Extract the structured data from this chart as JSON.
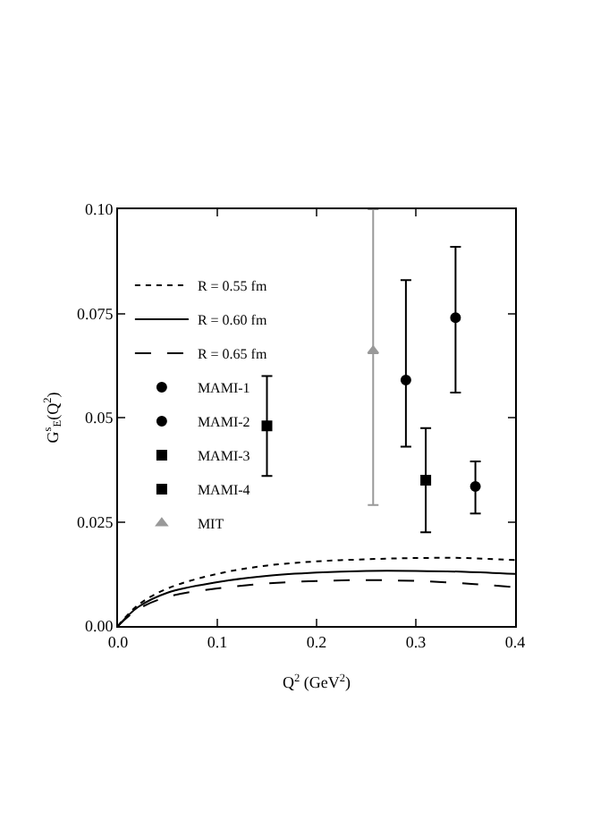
{
  "chart_data": {
    "type": "line",
    "xlabel": "Q$^{2}$ (GeV$^{2}$)",
    "ylabel": "G$^{s}$$_{E}$(Q$^{2}$)",
    "xlim": [
      0,
      0.4
    ],
    "xticks": [
      {
        "value": 0,
        "label": "0.0"
      },
      0.1,
      0.2,
      0.3,
      0.4
    ],
    "ylim": [
      0,
      0.1
    ],
    "yticks": [
      {
        "value": 0,
        "label": "0.00"
      },
      0.025,
      {
        "value": 0.05,
        "label": "0.05"
      },
      0.075,
      {
        "value": 0.1,
        "label": "0.10"
      }
    ],
    "legend": "top left",
    "series": [
      {
        "name": "R = 0.55 fm",
        "line_style": "dotted",
        "color": "#000000",
        "x": [
          0,
          0.02,
          0.05,
          0.1,
          0.15,
          0.2,
          0.25,
          0.3,
          0.35,
          0.4
        ],
        "values": [
          0,
          0.005,
          0.009,
          0.0125,
          0.0145,
          0.0155,
          0.016,
          0.0163,
          0.0163,
          0.0158
        ]
      },
      {
        "name": "R = 0.60 fm",
        "line_style": "solid",
        "color": "#000000",
        "x": [
          0,
          0.02,
          0.05,
          0.1,
          0.15,
          0.2,
          0.25,
          0.3,
          0.35,
          0.4
        ],
        "values": [
          0,
          0.0045,
          0.008,
          0.0105,
          0.012,
          0.0128,
          0.0132,
          0.0132,
          0.013,
          0.0125
        ]
      },
      {
        "name": "R = 0.65 fm",
        "line_style": "dashed",
        "color": "#000000",
        "x": [
          0,
          0.02,
          0.05,
          0.1,
          0.15,
          0.2,
          0.25,
          0.3,
          0.35,
          0.4
        ],
        "values": [
          0,
          0.004,
          0.007,
          0.009,
          0.0102,
          0.0108,
          0.011,
          0.0108,
          0.0102,
          0.0093
        ]
      },
      {
        "name": "MAMI-1",
        "type": "scatter",
        "marker": "circle",
        "color": "#000000",
        "x": [
          0.29,
          0.34
        ],
        "values": [
          0.059,
          0.074
        ],
        "errors": [
          [
            0.043,
            0.083
          ],
          [
            0.056,
            0.091
          ]
        ]
      },
      {
        "name": "MAMI-2",
        "type": "scatter",
        "marker": "circle",
        "color": "#000000",
        "x": [
          0.36
        ],
        "values": [
          0.0335
        ],
        "errors": [
          [
            0.027,
            0.0395
          ]
        ]
      },
      {
        "name": "MAMI-3",
        "type": "scatter",
        "marker": "square",
        "color": "#000000",
        "x": [
          0.31
        ],
        "values": [
          0.035
        ],
        "errors": [
          [
            0.0225,
            0.0475
          ]
        ]
      },
      {
        "name": "MAMI-4",
        "type": "scatter",
        "marker": "square",
        "color": "#000000",
        "x": [
          0.15
        ],
        "values": [
          0.048
        ],
        "errors": [
          [
            0.036,
            0.06
          ]
        ]
      },
      {
        "name": "MIT",
        "type": "scatter",
        "marker": "triangle",
        "color": "#999999",
        "x": [
          0.257
        ],
        "values": [
          0.066
        ],
        "errors": [
          [
            0.029,
            0.1
          ]
        ]
      }
    ]
  }
}
